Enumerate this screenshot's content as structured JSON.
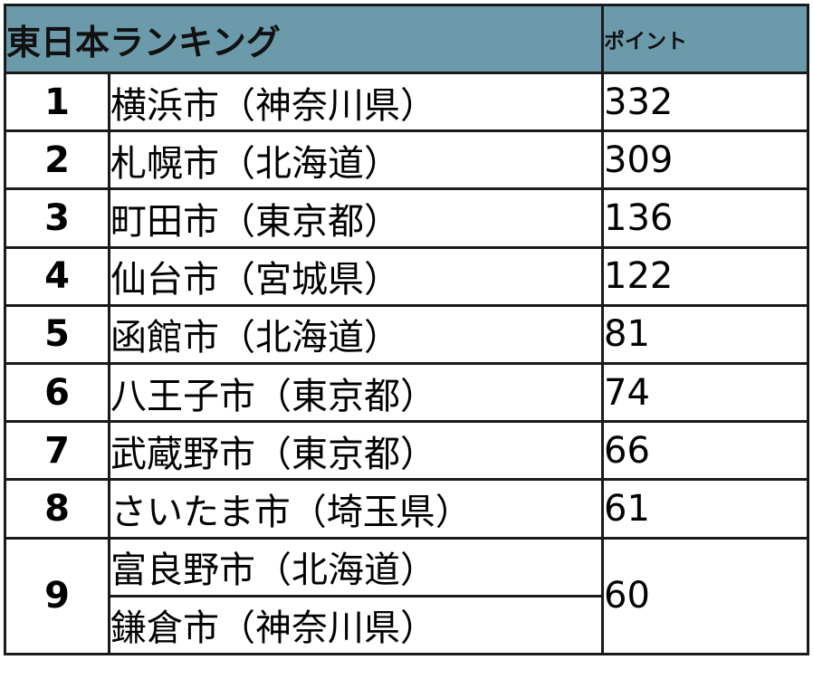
{
  "header": {
    "title": "東日本ランキング",
    "points_label": "ポイント"
  },
  "colors": {
    "header_bg": "#6b9aab",
    "border": "#1a1a1a",
    "text": "#111111"
  },
  "rows": [
    {
      "rank": "1",
      "city": "横浜市（神奈川県）",
      "points": "332"
    },
    {
      "rank": "2",
      "city": "札幌市（北海道）",
      "points": "309"
    },
    {
      "rank": "3",
      "city": "町田市（東京都）",
      "points": "136"
    },
    {
      "rank": "4",
      "city": "仙台市（宮城県）",
      "points": "122"
    },
    {
      "rank": "5",
      "city": "函館市（北海道）",
      "points": "81"
    },
    {
      "rank": "6",
      "city": "八王子市（東京都）",
      "points": "74"
    },
    {
      "rank": "7",
      "city": "武蔵野市（東京都）",
      "points": "66"
    },
    {
      "rank": "8",
      "city": "さいたま市（埼玉県）",
      "points": "61"
    },
    {
      "rank": "9",
      "city": "富良野市（北海道）",
      "points": "60"
    },
    {
      "rank": "9",
      "city": "鎌倉市（神奈川県）",
      "points": "60"
    }
  ]
}
